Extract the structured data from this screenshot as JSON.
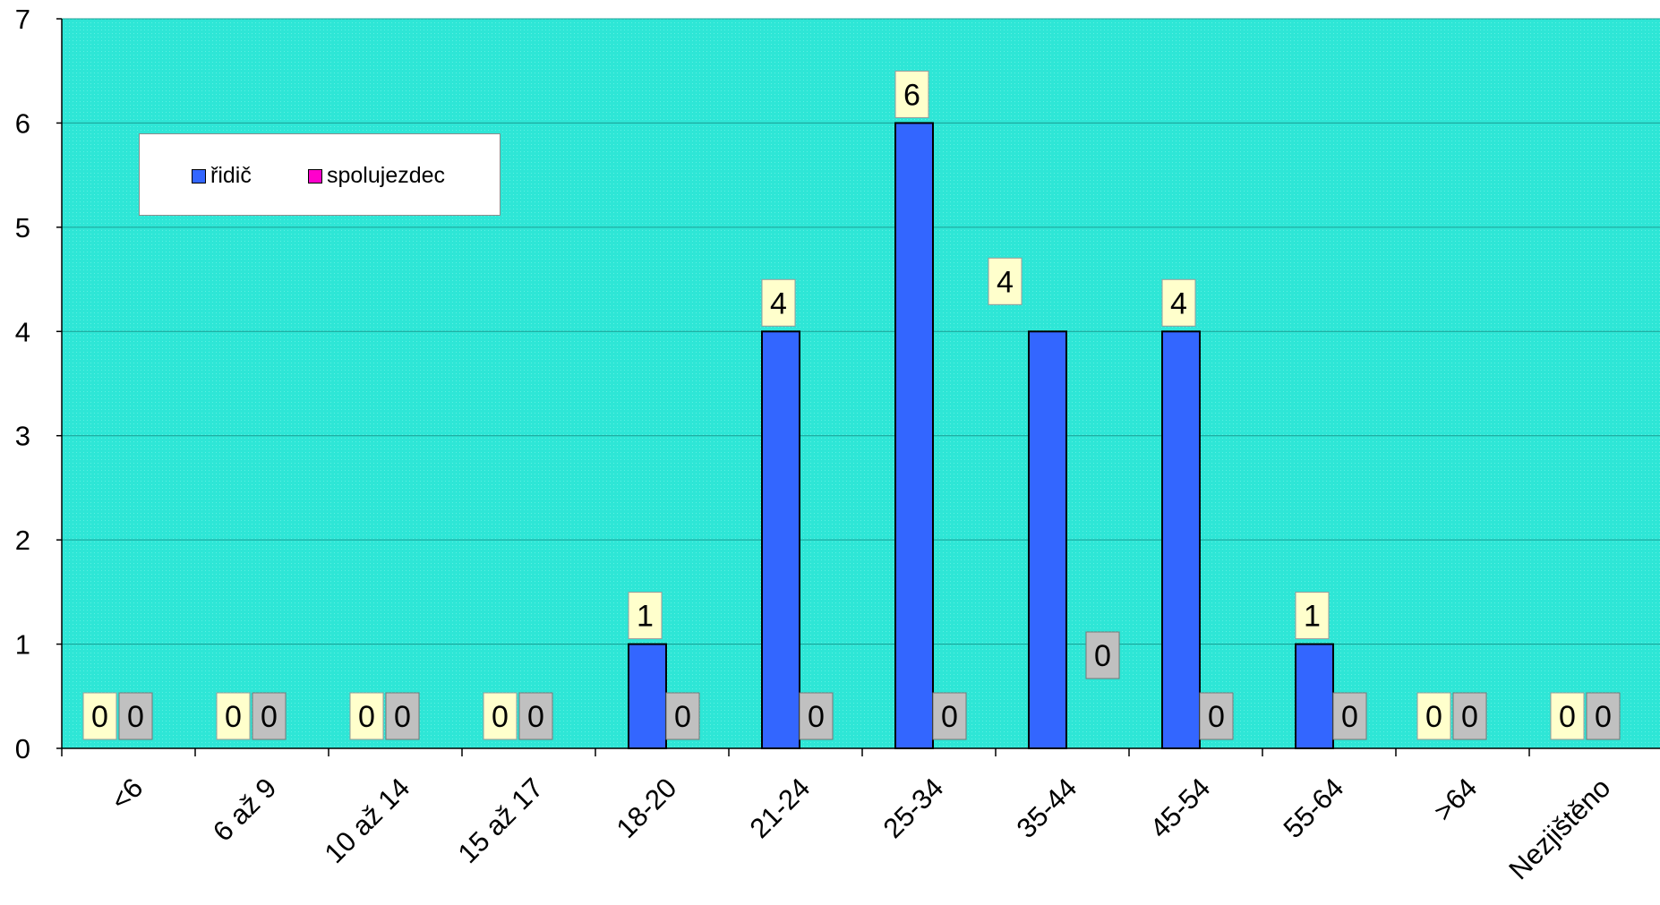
{
  "colors": {
    "plot_background": "#2ee6d6",
    "series_ridic": "#3366ff",
    "series_spolujezdec": "#ff00cc",
    "label_ridic_bg": "#ffffcc",
    "label_spolujezdec_bg": "#c0c0c0",
    "gridline": "#1a9e94"
  },
  "chart_data": {
    "type": "bar",
    "categories": [
      "<6",
      "6 až 9",
      "10 až 14",
      "15 až 17",
      "18-20",
      "21-24",
      "25-34",
      "35-44",
      "45-54",
      "55-64",
      ">64",
      "Nezjištěno"
    ],
    "series": [
      {
        "name": "řidič",
        "values": [
          0,
          0,
          0,
          0,
          1,
          4,
          6,
          4,
          4,
          1,
          0,
          0
        ]
      },
      {
        "name": "spolujezdec",
        "values": [
          0,
          0,
          0,
          0,
          0,
          0,
          0,
          0,
          0,
          0,
          0,
          0
        ]
      }
    ],
    "yticks": [
      "0",
      "1",
      "2",
      "3",
      "4",
      "5",
      "6",
      "7"
    ],
    "ylim": [
      0,
      7
    ],
    "grid": true,
    "legend_position": "top-left",
    "data_labels": true
  }
}
